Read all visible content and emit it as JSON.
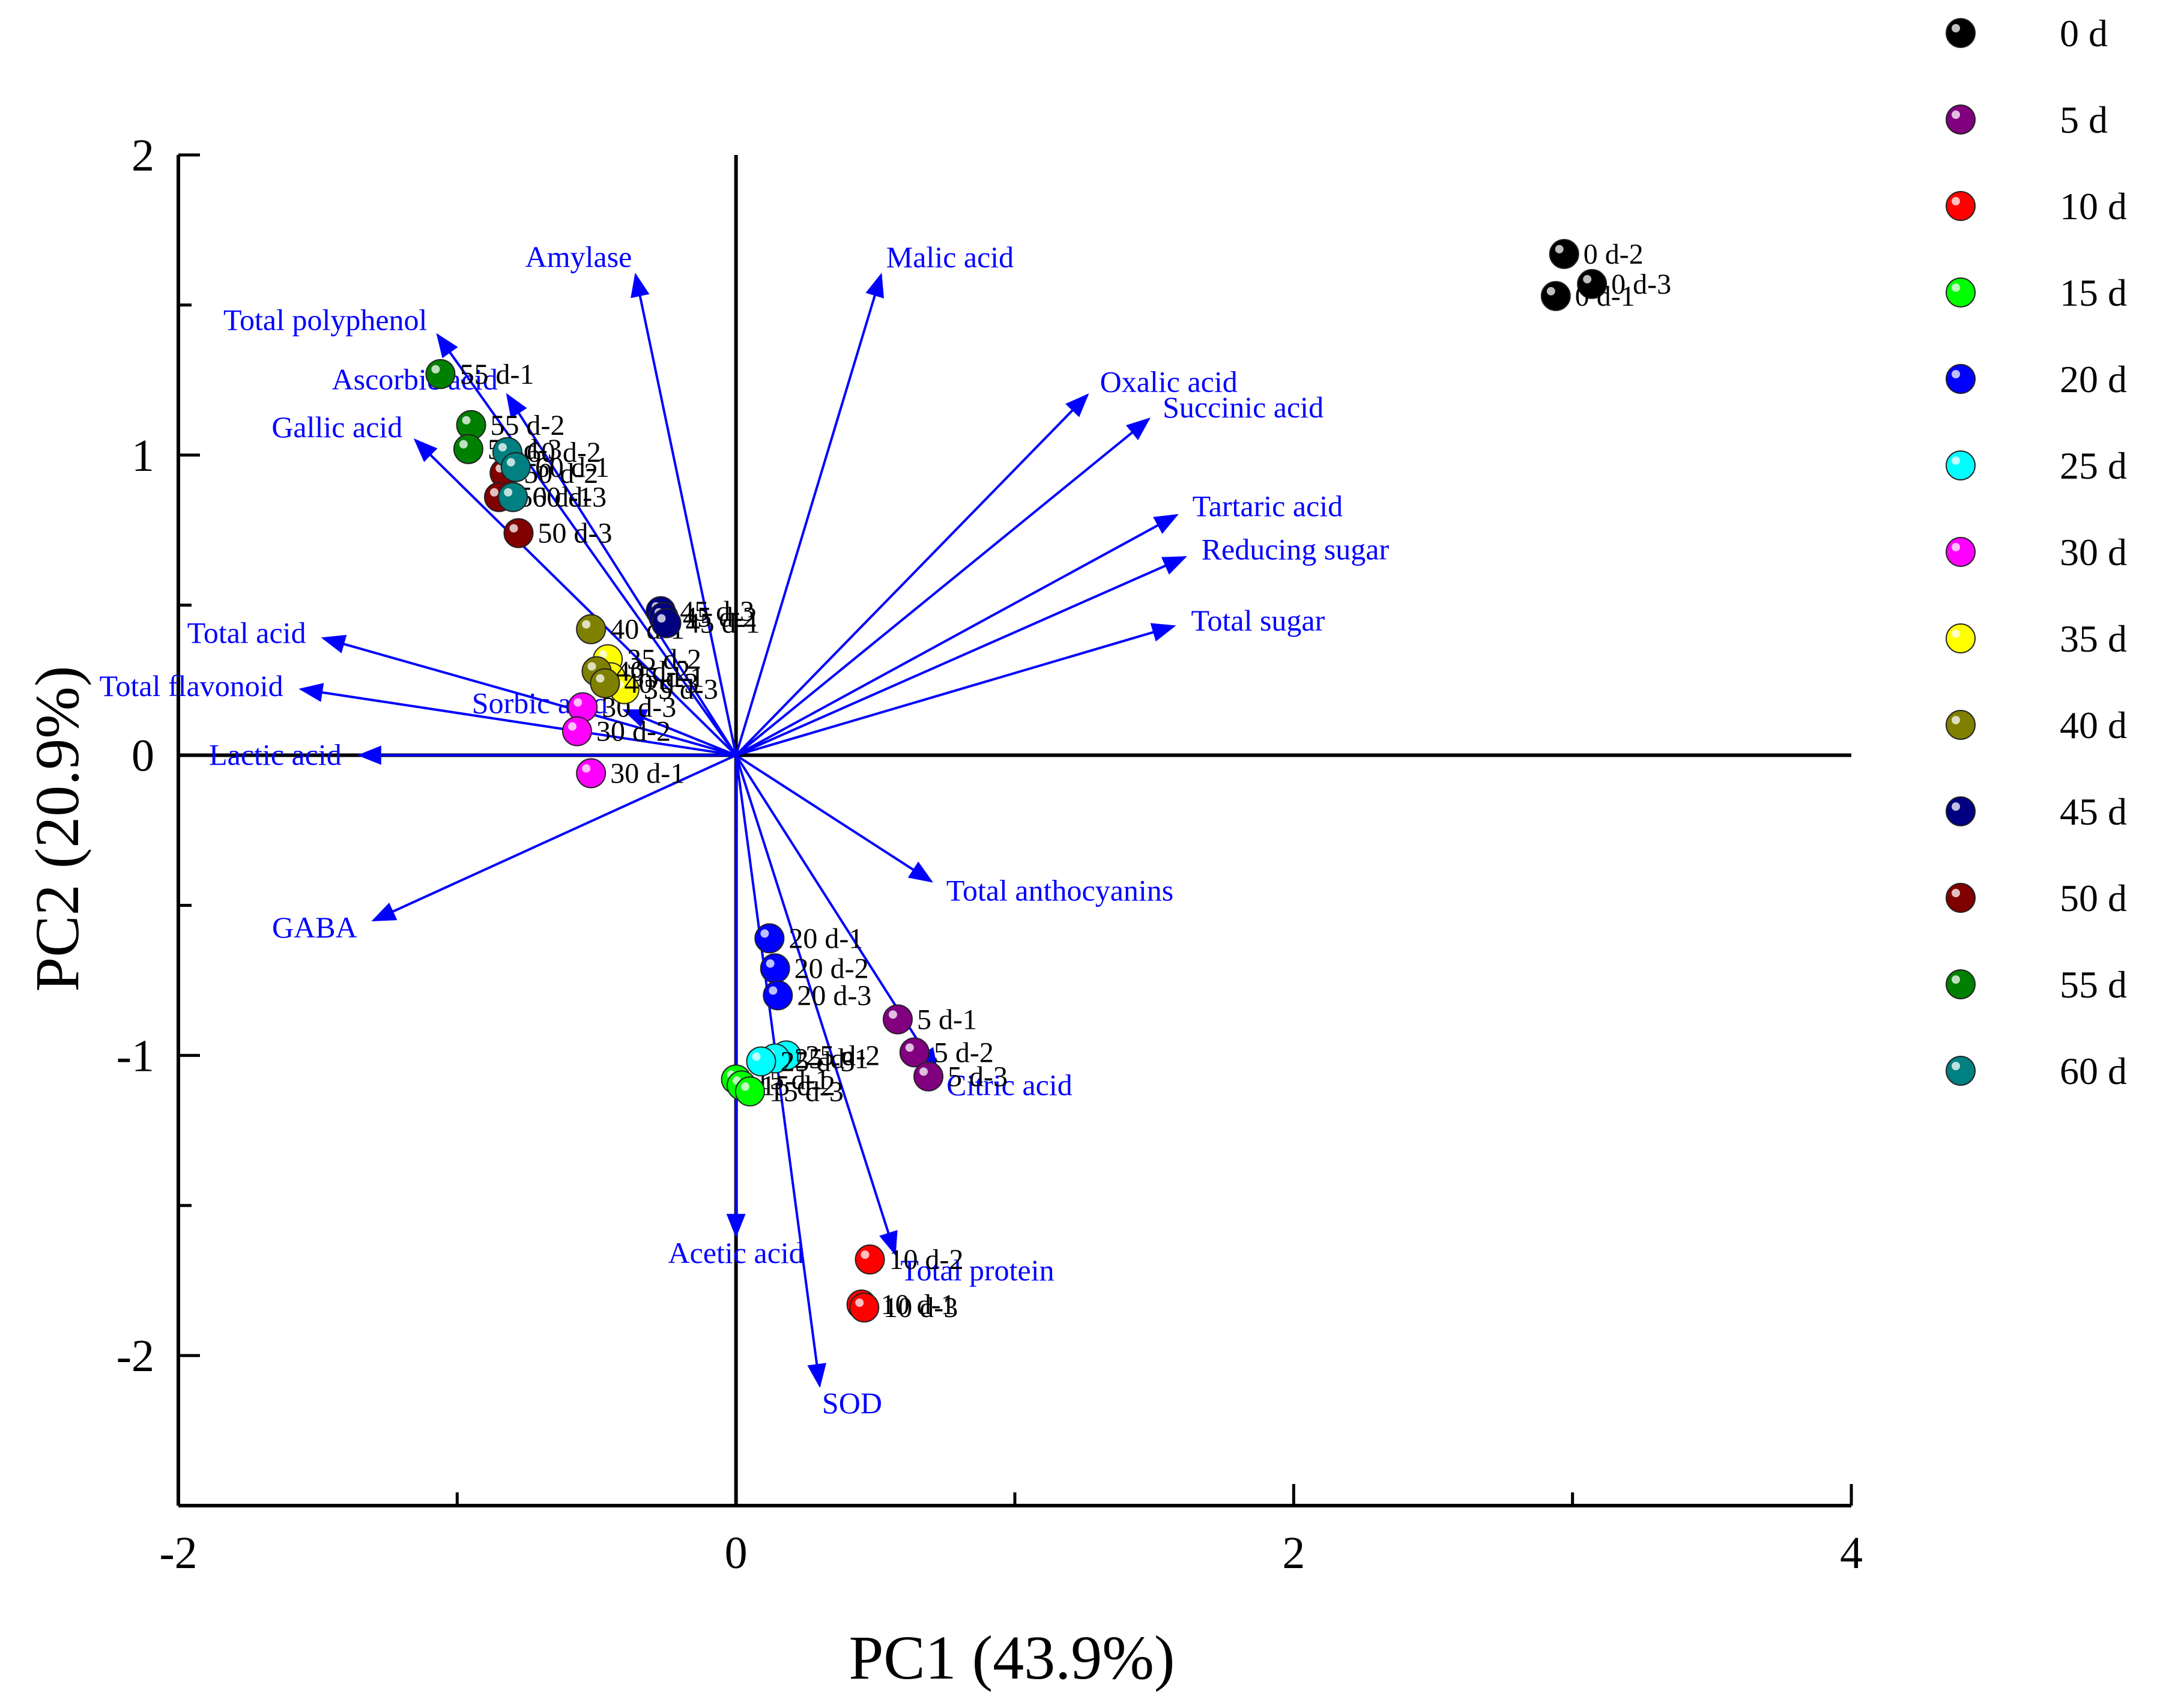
{
  "chart_data": {
    "type": "scatter",
    "xlabel": "PC1 (43.9%)",
    "ylabel": "PC2 (20.9%)",
    "xlim": [
      -2,
      4
    ],
    "ylim": [
      -2.5,
      2
    ],
    "x_ticks": [
      -2,
      0,
      2,
      4
    ],
    "y_ticks": [
      -2,
      -1,
      0,
      1,
      2
    ],
    "grid": false,
    "legend_position": "right",
    "legend": [
      {
        "name": "0 d",
        "color": "#000000"
      },
      {
        "name": "5 d",
        "color": "#800080"
      },
      {
        "name": "10 d",
        "color": "#ff0000"
      },
      {
        "name": "15 d",
        "color": "#00ff00"
      },
      {
        "name": "20 d",
        "color": "#0000ff"
      },
      {
        "name": "25 d",
        "color": "#00ffff"
      },
      {
        "name": "30 d",
        "color": "#ff00ff"
      },
      {
        "name": "35 d",
        "color": "#ffff00"
      },
      {
        "name": "40 d",
        "color": "#808000"
      },
      {
        "name": "45 d",
        "color": "#000080"
      },
      {
        "name": "50 d",
        "color": "#800000"
      },
      {
        "name": "55 d",
        "color": "#008000"
      },
      {
        "name": "60 d",
        "color": "#008080"
      }
    ],
    "vectors": [
      {
        "name": "Amylase",
        "x": -0.36,
        "y": 1.6
      },
      {
        "name": "Malic acid",
        "x": 0.52,
        "y": 1.6
      },
      {
        "name": "Total polyphenol",
        "x": -1.07,
        "y": 1.4
      },
      {
        "name": "Ascorbic acid",
        "x": -0.82,
        "y": 1.2
      },
      {
        "name": "Gallic acid",
        "x": -1.15,
        "y": 1.05
      },
      {
        "name": "Oxalic acid",
        "x": 1.26,
        "y": 1.2
      },
      {
        "name": "Succinic acid",
        "x": 1.48,
        "y": 1.12
      },
      {
        "name": "Tartaric acid",
        "x": 1.58,
        "y": 0.8
      },
      {
        "name": "Reducing sugar",
        "x": 1.61,
        "y": 0.66
      },
      {
        "name": "Total sugar",
        "x": 1.57,
        "y": 0.43
      },
      {
        "name": "Total acid",
        "x": -1.48,
        "y": 0.39
      },
      {
        "name": "Total flavonoid",
        "x": -1.56,
        "y": 0.22
      },
      {
        "name": "Sorbic acid",
        "x": -0.4,
        "y": 0.15
      },
      {
        "name": "Lactic acid",
        "x": -1.35,
        "y": 0.0
      },
      {
        "name": "GABA",
        "x": -1.3,
        "y": -0.55
      },
      {
        "name": "Total anthocyanins",
        "x": 0.7,
        "y": -0.42
      },
      {
        "name": "Citric acid",
        "x": 0.72,
        "y": -1.05
      },
      {
        "name": "Total protein",
        "x": 0.57,
        "y": -1.66
      },
      {
        "name": "Acetic acid",
        "x": 0.0,
        "y": -1.6
      },
      {
        "name": "SOD",
        "x": 0.3,
        "y": -2.1
      }
    ],
    "points": [
      {
        "group": "0 d",
        "label": "0 d-2",
        "x": 2.97,
        "y": 1.67
      },
      {
        "group": "0 d",
        "label": "0 d-3",
        "x": 3.07,
        "y": 1.57
      },
      {
        "group": "0 d",
        "label": "0 d-1",
        "x": 2.94,
        "y": 1.53
      },
      {
        "group": "5 d",
        "label": "5 d-1",
        "x": 0.58,
        "y": -0.88
      },
      {
        "group": "5 d",
        "label": "5 d-2",
        "x": 0.64,
        "y": -0.99
      },
      {
        "group": "5 d",
        "label": "5 d-3",
        "x": 0.69,
        "y": -1.07
      },
      {
        "group": "10 d",
        "label": "10 d-2",
        "x": 0.48,
        "y": -1.68
      },
      {
        "group": "10 d",
        "label": "10 d-1",
        "x": 0.45,
        "y": -1.83
      },
      {
        "group": "10 d",
        "label": "10 d-3",
        "x": 0.46,
        "y": -1.84
      },
      {
        "group": "15 d",
        "label": "15 d-1",
        "x": 0.0,
        "y": -1.08
      },
      {
        "group": "15 d",
        "label": "15 d-2",
        "x": 0.02,
        "y": -1.1
      },
      {
        "group": "15 d",
        "label": "15 d-3",
        "x": 0.05,
        "y": -1.12
      },
      {
        "group": "20 d",
        "label": "20 d-1",
        "x": 0.12,
        "y": -0.61
      },
      {
        "group": "20 d",
        "label": "20 d-2",
        "x": 0.14,
        "y": -0.71
      },
      {
        "group": "20 d",
        "label": "20 d-3",
        "x": 0.15,
        "y": -0.8
      },
      {
        "group": "25 d",
        "label": "25 d-2",
        "x": 0.18,
        "y": -1.0
      },
      {
        "group": "25 d",
        "label": "25 d-1",
        "x": 0.14,
        "y": -1.01
      },
      {
        "group": "25 d",
        "label": "25 d-3",
        "x": 0.09,
        "y": -1.02
      },
      {
        "group": "30 d",
        "label": "30 d-3",
        "x": -0.55,
        "y": 0.16
      },
      {
        "group": "30 d",
        "label": "30 d-2",
        "x": -0.57,
        "y": 0.08
      },
      {
        "group": "30 d",
        "label": "30 d-1",
        "x": -0.52,
        "y": -0.06
      },
      {
        "group": "35 d",
        "label": "35 d-2",
        "x": -0.46,
        "y": 0.32
      },
      {
        "group": "35 d",
        "label": "35 d-1",
        "x": -0.45,
        "y": 0.26
      },
      {
        "group": "35 d",
        "label": "35 d-3",
        "x": -0.4,
        "y": 0.22
      },
      {
        "group": "40 d",
        "label": "40 d-1",
        "x": -0.52,
        "y": 0.42
      },
      {
        "group": "40 d",
        "label": "40 d-2",
        "x": -0.5,
        "y": 0.28
      },
      {
        "group": "40 d",
        "label": "40 d-3",
        "x": -0.47,
        "y": 0.24
      },
      {
        "group": "45 d",
        "label": "45 d-3",
        "x": -0.27,
        "y": 0.48
      },
      {
        "group": "45 d",
        "label": "45 d-2",
        "x": -0.26,
        "y": 0.46
      },
      {
        "group": "45 d",
        "label": "45 d-1",
        "x": -0.25,
        "y": 0.44
      },
      {
        "group": "50 d",
        "label": "50 d-2",
        "x": -0.83,
        "y": 0.94
      },
      {
        "group": "50 d",
        "label": "50 d-1",
        "x": -0.85,
        "y": 0.86
      },
      {
        "group": "50 d",
        "label": "50 d-3",
        "x": -0.78,
        "y": 0.74
      },
      {
        "group": "55 d",
        "label": "55 d-1",
        "x": -1.06,
        "y": 1.27
      },
      {
        "group": "55 d",
        "label": "55 d-2",
        "x": -0.95,
        "y": 1.1
      },
      {
        "group": "55 d",
        "label": "55 d-3",
        "x": -0.96,
        "y": 1.02
      },
      {
        "group": "60 d",
        "label": "60 d-2",
        "x": -0.82,
        "y": 1.01
      },
      {
        "group": "60 d",
        "label": "60 d-1",
        "x": -0.79,
        "y": 0.96
      },
      {
        "group": "60 d",
        "label": "60 d-3",
        "x": -0.8,
        "y": 0.86
      }
    ]
  }
}
